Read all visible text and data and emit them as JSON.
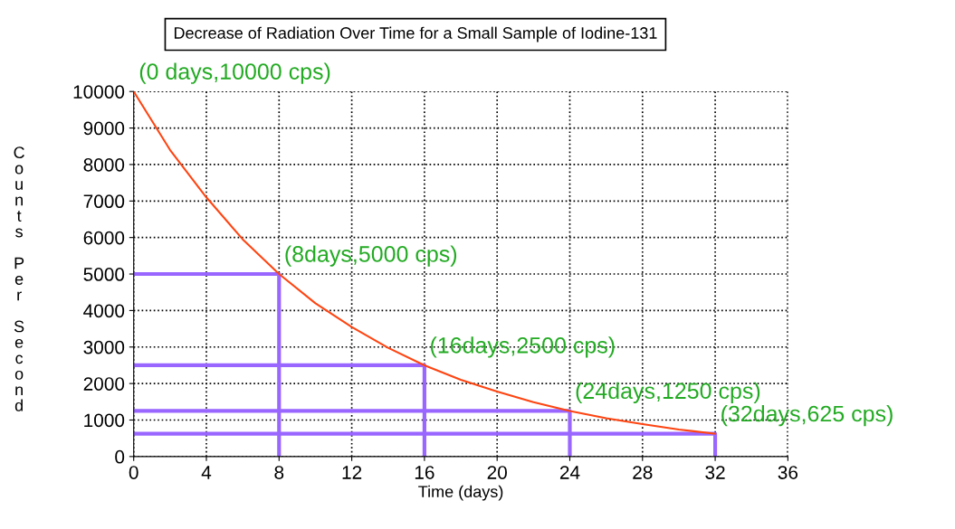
{
  "chart_data": {
    "type": "line",
    "title": "Decrease of Radiation Over Time for a Small Sample of Iodine-131",
    "xlabel": "Time (days)",
    "ylabel": "Counts Per Second",
    "xlim": [
      0,
      36
    ],
    "xticks": [
      0,
      4,
      8,
      12,
      16,
      20,
      24,
      28,
      32,
      36
    ],
    "ylim": [
      0,
      10000
    ],
    "yticks": [
      0,
      1000,
      2000,
      3000,
      4000,
      5000,
      6000,
      7000,
      8000,
      9000,
      10000
    ],
    "grid": true,
    "marker": "none",
    "series": [
      {
        "color": "#ff4411",
        "x": [
          0,
          2,
          4,
          6,
          8,
          10,
          12,
          14,
          16,
          18,
          20,
          22,
          24,
          26,
          28,
          30,
          32
        ],
        "values": [
          10000,
          8400,
          7100,
          5950,
          5000,
          4200,
          3550,
          2980,
          2500,
          2100,
          1780,
          1490,
          1250,
          1050,
          890,
          740,
          625
        ]
      },
      {
        "color": "#9966ff",
        "x": [
          0,
          8,
          8
        ],
        "values": [
          5000,
          5000,
          0
        ]
      },
      {
        "color": "#9966ff",
        "x": [
          0,
          16,
          16
        ],
        "values": [
          2500,
          2500,
          0
        ]
      },
      {
        "color": "#9966ff",
        "x": [
          0,
          24,
          24
        ],
        "values": [
          1250,
          1250,
          0
        ]
      },
      {
        "color": "#9966ff",
        "x": [
          0,
          32,
          32
        ],
        "values": [
          625,
          625,
          0
        ]
      }
    ],
    "annotations": [
      {
        "text": "(0 days,10000 cps)",
        "x": 0,
        "y": 10000
      },
      {
        "text": "(8days,5000 cps)",
        "x": 8,
        "y": 5000
      },
      {
        "text": "(16days,2500 cps)",
        "x": 16,
        "y": 2500
      },
      {
        "text": "(24days,1250 cps)",
        "x": 24,
        "y": 1250
      },
      {
        "text": "(32days,625 cps)",
        "x": 32,
        "y": 625
      }
    ]
  }
}
